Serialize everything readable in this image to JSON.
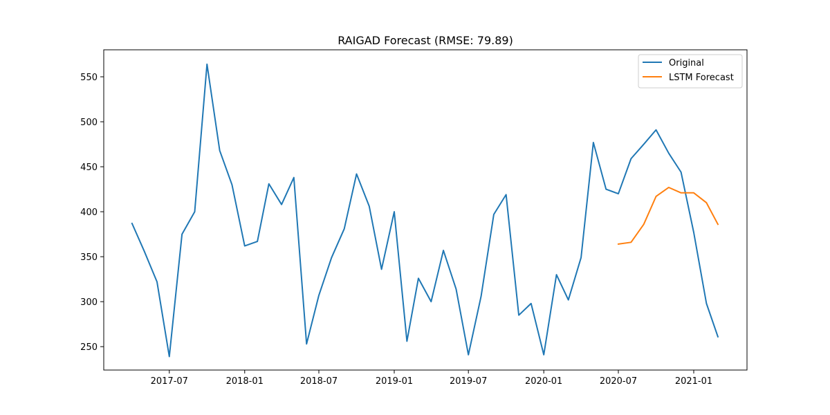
{
  "chart_data": {
    "type": "line",
    "title": "RAIGAD Forecast (RMSE: 79.89)",
    "xlabel": "",
    "ylabel": "",
    "x_tick_labels": [
      "2017-07",
      "2018-01",
      "2018-07",
      "2019-01",
      "2019-07",
      "2020-01",
      "2020-07",
      "2021-01"
    ],
    "y_ticks": [
      250,
      300,
      350,
      400,
      450,
      500,
      550
    ],
    "xlim": [
      "2017-01-22",
      "2021-05-11"
    ],
    "ylim": [
      224,
      580
    ],
    "grid": false,
    "legend_position": "top-right",
    "series": [
      {
        "name": "Original",
        "color": "#1f77b4",
        "points": [
          [
            "2017-04-01",
            387
          ],
          [
            "2017-05-01",
            356
          ],
          [
            "2017-06-01",
            322
          ],
          [
            "2017-07-01",
            239
          ],
          [
            "2017-08-01",
            375
          ],
          [
            "2017-09-01",
            400
          ],
          [
            "2017-10-01",
            564
          ],
          [
            "2017-11-01",
            468
          ],
          [
            "2017-12-01",
            430
          ],
          [
            "2018-01-01",
            362
          ],
          [
            "2018-02-01",
            367
          ],
          [
            "2018-03-01",
            431
          ],
          [
            "2018-04-01",
            408
          ],
          [
            "2018-05-01",
            438
          ],
          [
            "2018-06-01",
            253
          ],
          [
            "2018-07-01",
            307
          ],
          [
            "2018-08-01",
            349
          ],
          [
            "2018-09-01",
            381
          ],
          [
            "2018-10-01",
            442
          ],
          [
            "2018-11-01",
            406
          ],
          [
            "2018-12-01",
            336
          ],
          [
            "2019-01-01",
            400
          ],
          [
            "2019-02-01",
            256
          ],
          [
            "2019-03-01",
            326
          ],
          [
            "2019-04-01",
            300
          ],
          [
            "2019-05-01",
            357
          ],
          [
            "2019-06-01",
            314
          ],
          [
            "2019-07-01",
            241
          ],
          [
            "2019-08-01",
            306
          ],
          [
            "2019-09-01",
            397
          ],
          [
            "2019-10-01",
            419
          ],
          [
            "2019-11-01",
            285
          ],
          [
            "2019-12-01",
            298
          ],
          [
            "2020-01-01",
            241
          ],
          [
            "2020-02-01",
            330
          ],
          [
            "2020-03-01",
            302
          ],
          [
            "2020-04-01",
            349
          ],
          [
            "2020-05-01",
            477
          ],
          [
            "2020-06-01",
            425
          ],
          [
            "2020-07-01",
            420
          ],
          [
            "2020-08-01",
            459
          ],
          [
            "2020-09-01",
            475
          ],
          [
            "2020-10-01",
            491
          ],
          [
            "2020-11-01",
            465
          ],
          [
            "2020-12-01",
            444
          ],
          [
            "2021-01-01",
            377
          ],
          [
            "2021-02-01",
            298
          ],
          [
            "2021-03-01",
            261
          ]
        ]
      },
      {
        "name": "LSTM Forecast",
        "color": "#ff7f0e",
        "points": [
          [
            "2020-07-01",
            364
          ],
          [
            "2020-08-01",
            366
          ],
          [
            "2020-09-01",
            386
          ],
          [
            "2020-10-01",
            417
          ],
          [
            "2020-11-01",
            427
          ],
          [
            "2020-12-01",
            421
          ],
          [
            "2021-01-01",
            421
          ],
          [
            "2021-02-01",
            410
          ],
          [
            "2021-03-01",
            386
          ]
        ]
      }
    ]
  }
}
